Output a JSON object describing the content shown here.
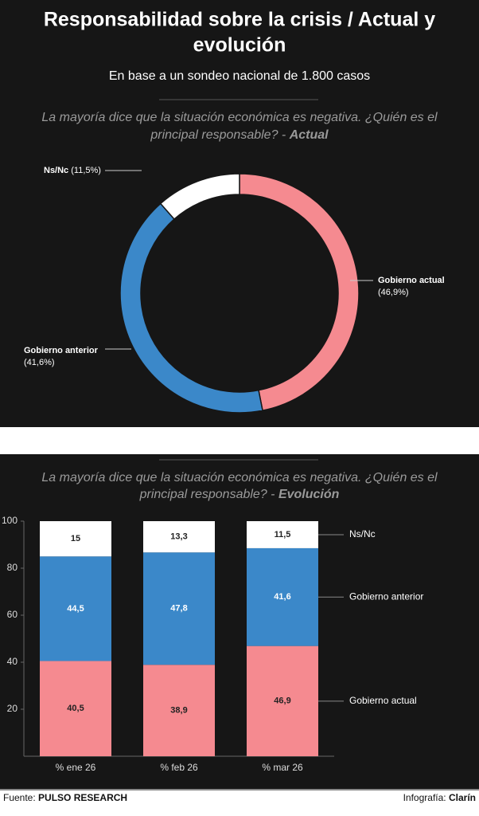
{
  "header": {
    "title_lines": [
      "Responsabilidad sobre la crisis / Actual y",
      "evolución"
    ],
    "subtitle": "En base a un sondeo nacional de 1.800 casos"
  },
  "chart_data": [
    {
      "type": "pie",
      "question_lines": [
        "La mayoría dice que la situación económica es negativa. ¿Quién es el",
        "principal responsable? -"
      ],
      "title_emphasis": "Actual",
      "categories": [
        "Gobierno actual",
        "Gobierno anterior",
        "Ns/Nc"
      ],
      "values": [
        46.9,
        41.6,
        11.5
      ],
      "value_labels": [
        "(46,9%)",
        "(41,6%)",
        "(11,5%)"
      ],
      "colors": [
        "#f58a90",
        "#3b88c9",
        "#ffffff"
      ]
    },
    {
      "type": "stacked_bar",
      "question_lines": [
        "La mayoría dice que la situación económica es negativa. ¿Quién es el",
        "principal responsable? -"
      ],
      "title_emphasis": "Evolución",
      "categories": [
        "% ene 26",
        "% feb 26",
        "% mar 26"
      ],
      "series": [
        {
          "name": "Gobierno actual",
          "color": "#f58a90",
          "values": [
            40.5,
            38.9,
            46.9
          ],
          "value_labels": [
            "40,5",
            "38,9",
            "46,9"
          ]
        },
        {
          "name": "Gobierno anterior",
          "color": "#3b88c9",
          "values": [
            44.5,
            47.8,
            41.6
          ],
          "value_labels": [
            "44,5",
            "47,8",
            "41,6"
          ]
        },
        {
          "name": "Ns/Nc",
          "color": "#ffffff",
          "values": [
            15,
            13.3,
            11.5
          ],
          "value_labels": [
            "15",
            "13,3",
            "11,5"
          ]
        }
      ],
      "ylim": [
        0,
        100
      ],
      "yticks": [
        20,
        40,
        60,
        80,
        100
      ]
    }
  ],
  "footer": {
    "source_label": "Fuente:",
    "source": "PULSO RESEARCH",
    "credit_label": "Infografía:",
    "credit": "Clarín"
  }
}
